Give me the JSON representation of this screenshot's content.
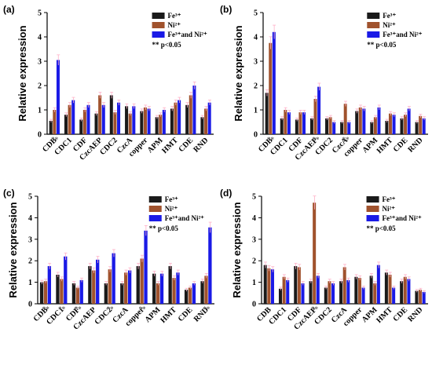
{
  "chart_data": [
    {
      "panel": "(a)",
      "type": "bar",
      "ylabel": "Relative expression",
      "ylim": [
        0,
        5
      ],
      "yticks": [
        "0",
        "1",
        "2",
        "3",
        "4",
        "5"
      ],
      "categories": [
        "CDB",
        "CDC1",
        "CDF",
        "CzcAEP",
        "CDC2",
        "CzcA",
        "copper",
        "APM",
        "HMT",
        "CDE",
        "RND"
      ],
      "series": [
        {
          "name": "Fe³⁺",
          "color": "#1a1a1a",
          "values": [
            0.55,
            0.8,
            0.6,
            0.85,
            1.6,
            1.15,
            0.95,
            0.7,
            1.05,
            1.2,
            0.7
          ]
        },
        {
          "name": "Ni²⁺",
          "color": "#a0522d",
          "values": [
            1.0,
            1.2,
            1.0,
            1.6,
            0.9,
            0.85,
            1.1,
            0.8,
            1.3,
            1.6,
            1.05
          ]
        },
        {
          "name": "Fe³⁺and Ni²⁺",
          "color": "#1a1ae6",
          "values": [
            3.05,
            1.4,
            1.2,
            1.2,
            1.3,
            1.15,
            1.05,
            1.0,
            1.4,
            2.0,
            1.3
          ]
        }
      ],
      "significance": [
        "**",
        "",
        "",
        "",
        "",
        "",
        "",
        "",
        "",
        "",
        ""
      ],
      "significance_label": "** p<0.05"
    },
    {
      "panel": "(b)",
      "type": "bar",
      "ylabel": "Relative expression",
      "ylim": [
        0,
        5
      ],
      "yticks": [
        "0",
        "1",
        "2",
        "3",
        "4",
        "5"
      ],
      "categories": [
        "CDB",
        "CDC1",
        "CDF",
        "CzcAEP",
        "CDC2",
        "CzcA",
        "copper",
        "APM",
        "HMT",
        "CDE",
        "RND"
      ],
      "series": [
        {
          "name": "Fe³⁺",
          "color": "#1a1a1a",
          "values": [
            1.7,
            0.65,
            0.6,
            0.65,
            0.65,
            0.5,
            0.95,
            0.5,
            0.55,
            0.65,
            0.5
          ]
        },
        {
          "name": "Ni²⁺",
          "color": "#a0522d",
          "values": [
            3.75,
            1.0,
            0.9,
            1.45,
            0.7,
            1.25,
            1.1,
            0.7,
            0.85,
            0.8,
            0.75
          ]
        },
        {
          "name": "Fe³⁺and Ni²⁺",
          "color": "#1a1ae6",
          "values": [
            4.2,
            0.9,
            0.9,
            1.95,
            0.5,
            0.5,
            1.05,
            1.1,
            0.8,
            1.05,
            0.65
          ]
        }
      ],
      "significance": [
        "**",
        "",
        "",
        "**",
        "",
        "**",
        "",
        "",
        "",
        "",
        ""
      ],
      "significance_label": "** p<0.05"
    },
    {
      "panel": "(c)",
      "type": "bar",
      "ylabel": "Relative expression",
      "ylim": [
        0,
        5
      ],
      "yticks": [
        "0",
        "1",
        "2",
        "3",
        "4",
        "5"
      ],
      "categories": [
        "CDB",
        "CDC1",
        "CDF",
        "CzcAEP",
        "CDC2",
        "CzcA",
        "copper",
        "APM",
        "HMT",
        "CDE",
        "RND"
      ],
      "series": [
        {
          "name": "Fe³⁺",
          "color": "#1a1a1a",
          "values": [
            1.0,
            1.35,
            0.95,
            1.75,
            0.95,
            0.95,
            1.75,
            1.4,
            1.75,
            0.65,
            1.05
          ]
        },
        {
          "name": "Ni²⁺",
          "color": "#a0522d",
          "values": [
            1.05,
            1.15,
            0.75,
            1.55,
            1.6,
            1.45,
            2.1,
            0.95,
            1.2,
            0.75,
            1.3
          ]
        },
        {
          "name": "Fe³⁺and Ni²⁺",
          "color": "#1a1ae6",
          "values": [
            1.75,
            2.2,
            1.1,
            2.05,
            2.35,
            1.55,
            3.4,
            1.4,
            1.45,
            0.95,
            3.55
          ]
        }
      ],
      "significance": [
        "**",
        "**",
        "**",
        "",
        "**",
        "",
        "**",
        "",
        "",
        "",
        "**"
      ],
      "significance_label": "** p<0.05"
    },
    {
      "panel": "(d)",
      "type": "bar",
      "ylabel": "Relative expression",
      "ylim": [
        0,
        5
      ],
      "yticks": [
        "0",
        "1",
        "2",
        "3",
        "4",
        "5"
      ],
      "categories": [
        "CDB",
        "CDC1",
        "CDF",
        "CzcAEP",
        "CDC2",
        "CzcA",
        "copper",
        "APM",
        "HMT",
        "CDE",
        "RND"
      ],
      "series": [
        {
          "name": "Fe³⁺",
          "color": "#1a1a1a",
          "values": [
            1.8,
            0.7,
            1.75,
            1.05,
            0.75,
            1.05,
            1.25,
            1.3,
            1.45,
            1.05,
            0.6
          ]
        },
        {
          "name": "Ni²⁺",
          "color": "#a0522d",
          "values": [
            1.65,
            1.25,
            1.7,
            4.7,
            1.05,
            1.7,
            1.2,
            0.95,
            1.35,
            1.25,
            0.65
          ]
        },
        {
          "name": "Fe³⁺and Ni²⁺",
          "color": "#1a1ae6",
          "values": [
            1.6,
            1.1,
            0.95,
            1.3,
            0.95,
            1.1,
            0.75,
            1.8,
            0.75,
            1.15,
            0.55
          ]
        }
      ],
      "significance": [
        "",
        "",
        "",
        "**",
        "",
        "",
        "",
        "",
        "",
        "",
        ""
      ],
      "significance_label": "** p<0.05"
    }
  ]
}
